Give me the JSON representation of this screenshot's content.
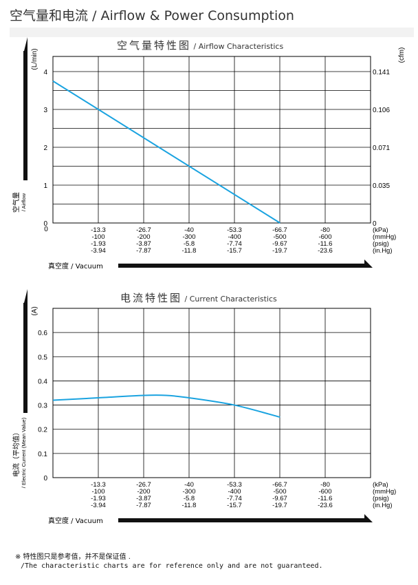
{
  "page_title": "空气量和电流 / Airflow & Power Consumption",
  "footnote": {
    "zh": "※ 特性图只是参考值，并不是保证值 .",
    "en": "/The characteristic charts are for reference only and are not guaranteed."
  },
  "colors": {
    "series": "#1aa3e0",
    "grid": "#000000",
    "arrow": "#111111"
  },
  "chart_data": [
    {
      "type": "line",
      "title_zh": "空气量特性图",
      "title_en": "/ Airflow Characteristics",
      "y_unit": "(L/min)",
      "y_label_zh": "空气量",
      "y_label_en": "/ Airflow",
      "y2_unit": "(cfm)",
      "x_label": "真空度 / Vacuum",
      "ylim": [
        0,
        4.4
      ],
      "yticks": [
        "0",
        "1",
        "2",
        "3",
        "4"
      ],
      "yticks_values": [
        0,
        1,
        2,
        3,
        4
      ],
      "y2ticks": [
        "0",
        "0.035",
        "0.071",
        "0.106",
        "0.141"
      ],
      "x_origin": "0",
      "xticks": {
        "kpa": [
          "-13.3",
          "-26.7",
          "-40",
          "-53.3",
          "-66.7",
          "-80"
        ],
        "mmhg": [
          "-100",
          "-200",
          "-300",
          "-400",
          "-500",
          "-600"
        ],
        "psig": [
          "-1.93",
          "-3.87",
          "-5.8",
          "-7.74",
          "-9.67",
          "-11.6"
        ],
        "inhg": [
          "-3.94",
          "-7.87",
          "-11.8",
          "-15.7",
          "-19.7",
          "-23.6"
        ]
      },
      "units": [
        "(kPa)",
        "(mmHg)",
        "(psig)",
        "(in.Hg)"
      ],
      "xlim_kpa": [
        0,
        -93.3
      ],
      "series": [
        {
          "x_kpa": [
            0,
            -66.7
          ],
          "y": [
            3.75,
            0
          ]
        }
      ]
    },
    {
      "type": "line",
      "title_zh": "电流特性图",
      "title_en": "/ Current Characteristics",
      "y_unit": "(A)",
      "y_label_zh": "电流（平均值）",
      "y_label_en": "/ Electric Current (Mean Value)",
      "x_label": "真空度 / Vacuum",
      "ylim": [
        0,
        0.7
      ],
      "yticks": [
        "0.1",
        "0.2",
        "0.3",
        "0.4",
        "0.5",
        "0.6"
      ],
      "yticks_values": [
        0.1,
        0.2,
        0.3,
        0.4,
        0.5,
        0.6
      ],
      "x_origin": "0",
      "xticks": {
        "kpa": [
          "-13.3",
          "-26.7",
          "-40",
          "-53.3",
          "-66.7",
          "-80"
        ],
        "mmhg": [
          "-100",
          "-200",
          "-300",
          "-400",
          "-500",
          "-600"
        ],
        "psig": [
          "-1.93",
          "-3.87",
          "-5.8",
          "-7.74",
          "-9.67",
          "-11.6"
        ],
        "inhg": [
          "-3.94",
          "-7.87",
          "-11.8",
          "-15.7",
          "-19.7",
          "-23.6"
        ]
      },
      "units": [
        "(kPa)",
        "(mmHg)",
        "(psig)",
        "(in.Hg)"
      ],
      "xlim_kpa": [
        0,
        -93.3
      ],
      "series": [
        {
          "x_kpa": [
            0,
            -13.3,
            -26.7,
            -33.3,
            -40,
            -53.3,
            -66.7
          ],
          "y": [
            0.32,
            0.33,
            0.34,
            0.34,
            0.33,
            0.3,
            0.25
          ]
        }
      ]
    }
  ]
}
